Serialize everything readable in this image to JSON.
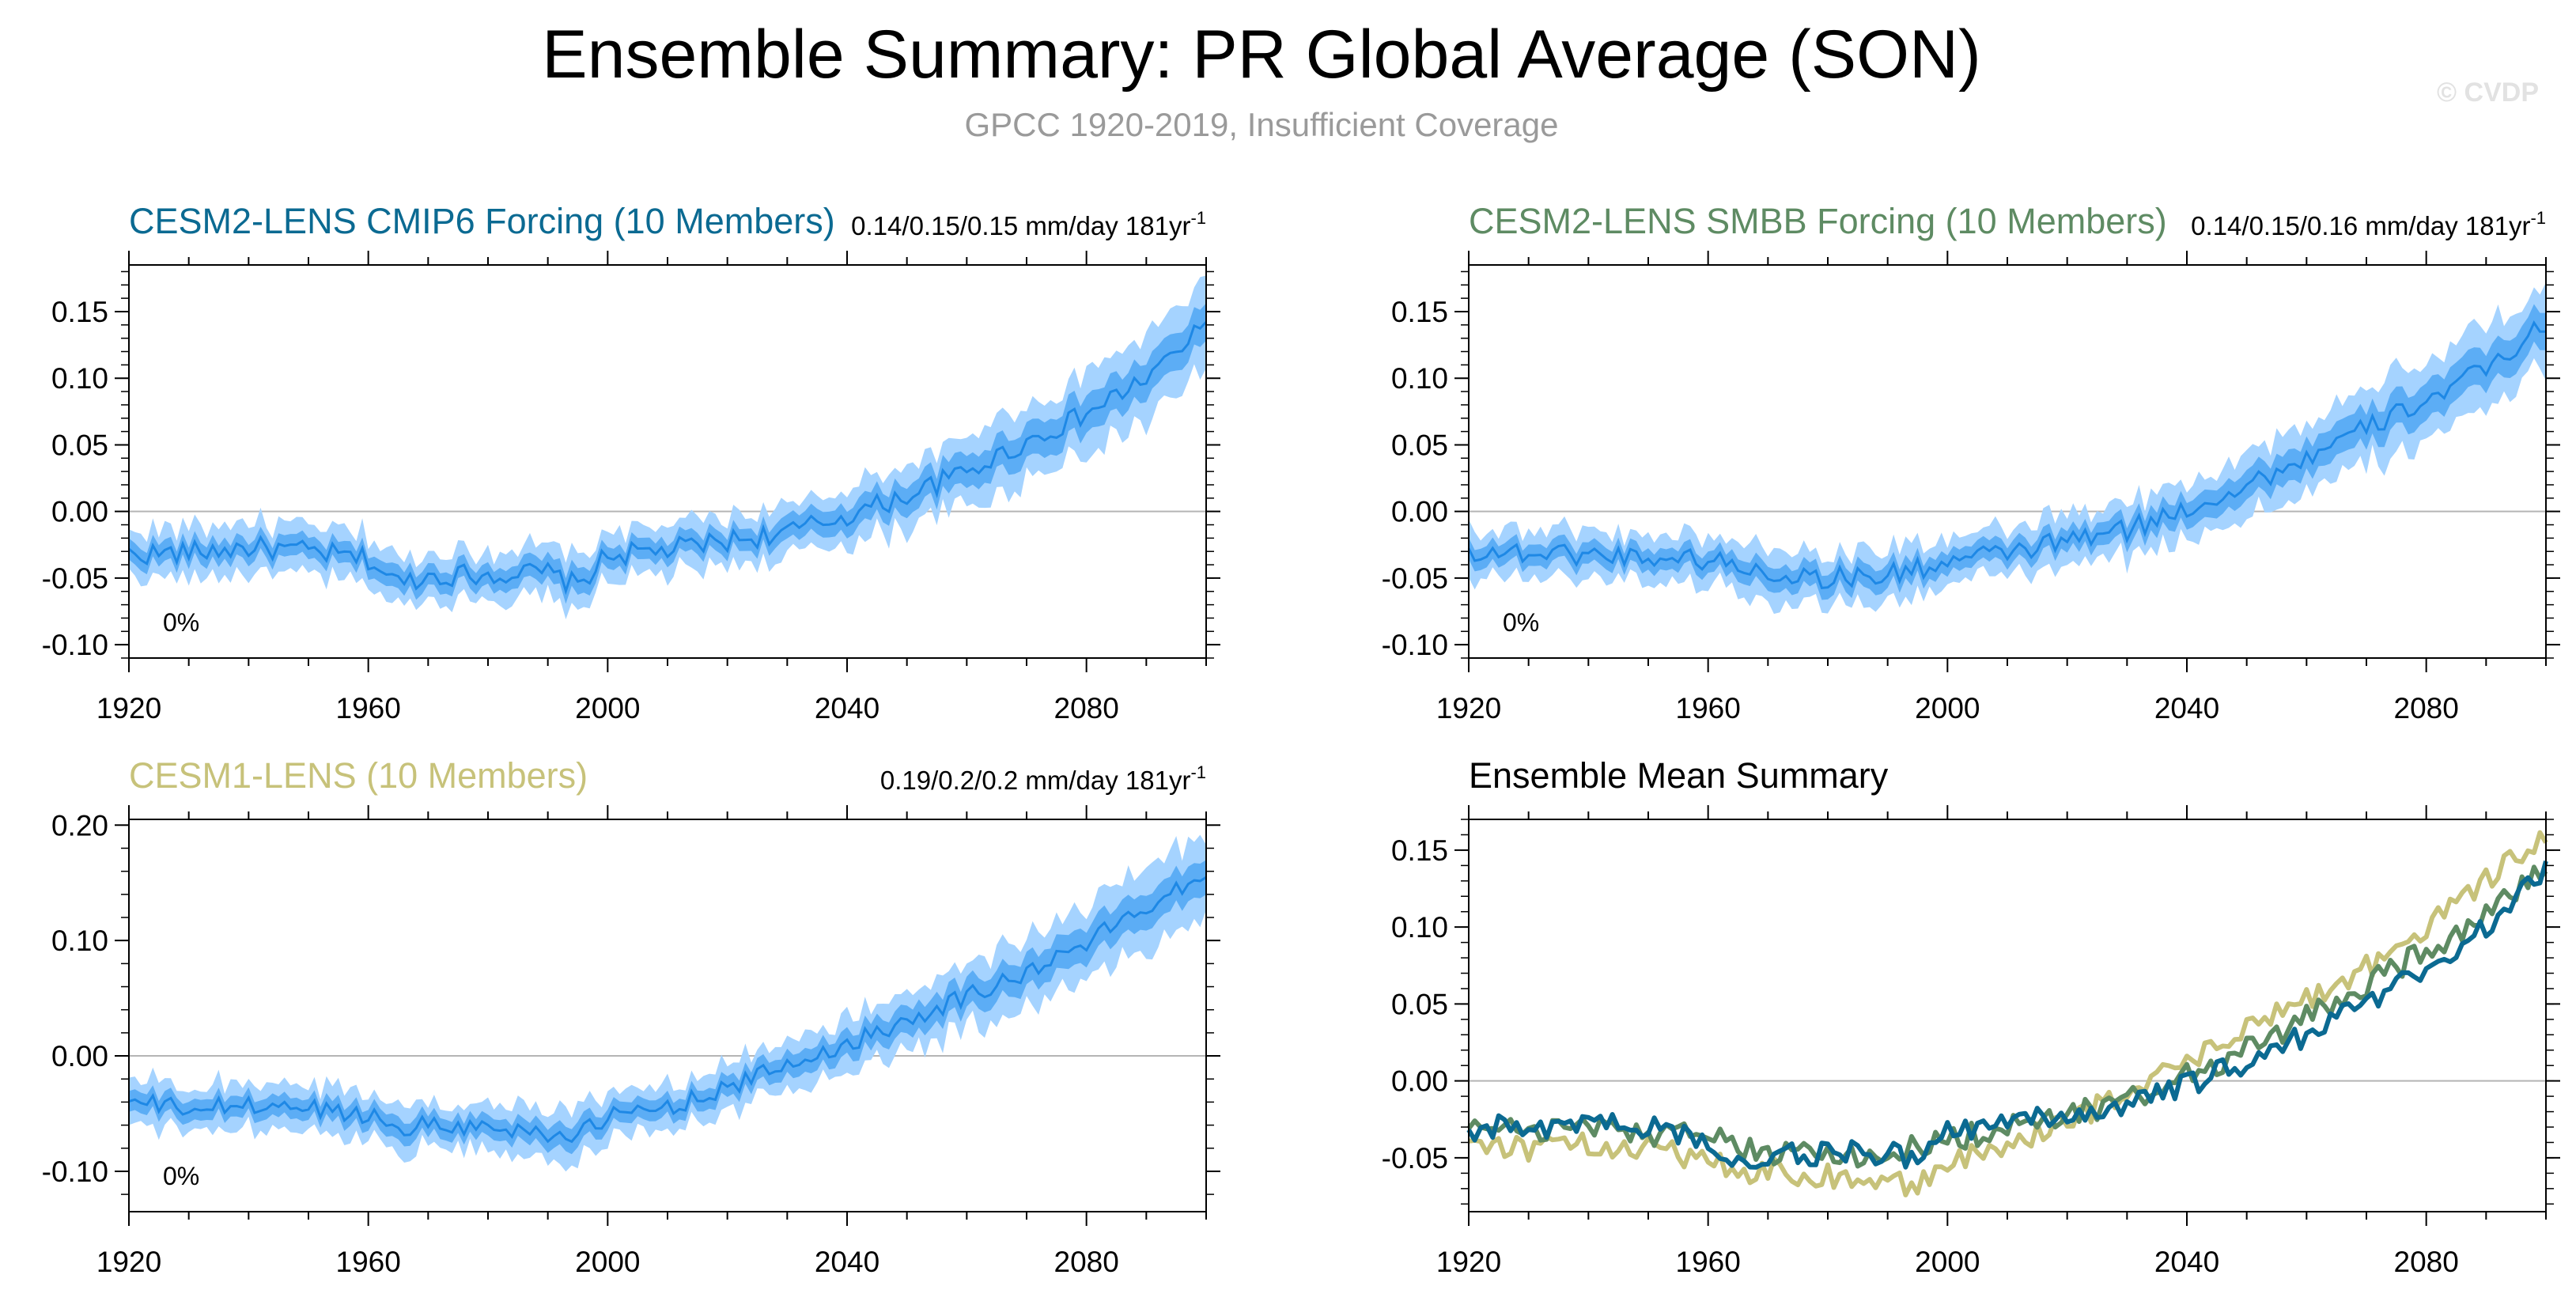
{
  "title": "Ensemble Summary: PR Global Average (SON)",
  "subtitle": "GPCC 1920-2019, Insufficient Coverage",
  "watermark": "© CVDP",
  "colors": {
    "band_outer": "#a5d3ff",
    "band_inner": "#5cadf5",
    "mean_line": "#1e88e5",
    "cesm2_cmip6": "#0b6a92",
    "cesm2_smbb": "#5e8b63",
    "cesm1": "#c7c27a",
    "zero_line": "#b5b5b5",
    "axis": "#000000"
  },
  "chart_data": [
    {
      "id": "cesm2-cmip6",
      "type": "area",
      "title": "CESM2-LENS CMIP6 Forcing (10 Members)",
      "title_color": "#0b6a92",
      "stat": "0.14/0.15/0.15 mm/day 181yr",
      "stat_sup": "-1",
      "pct": "0%",
      "xlim": [
        1920,
        2100
      ],
      "ylim": [
        -0.11,
        0.185
      ],
      "xticks": [
        1920,
        1960,
        2000,
        2040,
        2080
      ],
      "yticks": [
        "0.15",
        "0.10",
        "0.05",
        "0.00",
        "-0.05",
        "-0.10"
      ],
      "x": [
        1920,
        1930,
        1940,
        1950,
        1960,
        1965,
        1970,
        1980,
        1990,
        1995,
        2000,
        2010,
        2020,
        2030,
        2040,
        2050,
        2060,
        2070,
        2080,
        2090,
        2100
      ],
      "mean": [
        -0.032,
        -0.031,
        -0.027,
        -0.03,
        -0.036,
        -0.054,
        -0.048,
        -0.047,
        -0.046,
        -0.056,
        -0.033,
        -0.029,
        -0.022,
        -0.016,
        -0.003,
        0.012,
        0.03,
        0.052,
        0.073,
        0.1,
        0.139
      ],
      "spread_outer": [
        0.018,
        0.018,
        0.018,
        0.018,
        0.018,
        0.02,
        0.018,
        0.018,
        0.02,
        0.022,
        0.018,
        0.018,
        0.018,
        0.02,
        0.022,
        0.024,
        0.026,
        0.028,
        0.03,
        0.032,
        0.032
      ],
      "spread_inner": [
        0.008,
        0.008,
        0.008,
        0.008,
        0.008,
        0.009,
        0.008,
        0.008,
        0.009,
        0.01,
        0.008,
        0.008,
        0.008,
        0.009,
        0.01,
        0.011,
        0.012,
        0.013,
        0.014,
        0.014,
        0.014
      ]
    },
    {
      "id": "cesm2-smbb",
      "type": "area",
      "title": "CESM2-LENS SMBB Forcing (10 Members)",
      "title_color": "#5e8b63",
      "stat": "0.14/0.15/0.16 mm/day 181yr",
      "stat_sup": "-1",
      "pct": "0%",
      "xlim": [
        1920,
        2100
      ],
      "ylim": [
        -0.11,
        0.185
      ],
      "xticks": [
        1920,
        1960,
        2000,
        2040,
        2080
      ],
      "yticks": [
        "0.15",
        "0.10",
        "0.05",
        "0.00",
        "-0.05",
        "-0.10"
      ],
      "x": [
        1920,
        1930,
        1940,
        1950,
        1960,
        1970,
        1980,
        1990,
        2000,
        2010,
        2020,
        2030,
        2040,
        2050,
        2060,
        2070,
        2080,
        2090,
        2100
      ],
      "mean": [
        -0.03,
        -0.031,
        -0.032,
        -0.034,
        -0.036,
        -0.046,
        -0.05,
        -0.048,
        -0.038,
        -0.031,
        -0.022,
        -0.014,
        0.002,
        0.02,
        0.04,
        0.062,
        0.084,
        0.106,
        0.142
      ],
      "spread_outer": [
        0.018,
        0.018,
        0.018,
        0.018,
        0.018,
        0.02,
        0.02,
        0.02,
        0.018,
        0.018,
        0.018,
        0.02,
        0.022,
        0.024,
        0.026,
        0.028,
        0.03,
        0.03,
        0.03
      ],
      "spread_inner": [
        0.008,
        0.008,
        0.008,
        0.008,
        0.008,
        0.009,
        0.009,
        0.009,
        0.008,
        0.008,
        0.008,
        0.009,
        0.01,
        0.011,
        0.012,
        0.013,
        0.014,
        0.014,
        0.014
      ]
    },
    {
      "id": "cesm1",
      "type": "area",
      "title": "CESM1-LENS (10 Members)",
      "title_color": "#c7c27a",
      "stat": "0.19/0.2/0.2 mm/day 181yr",
      "stat_sup": "-1",
      "pct": "0%",
      "xlim": [
        1920,
        2100
      ],
      "ylim": [
        -0.135,
        0.205
      ],
      "xticks": [
        1920,
        1960,
        2000,
        2040,
        2080
      ],
      "yticks": [
        "0.20",
        "0.10",
        "0.00",
        "-0.10"
      ],
      "x": [
        1920,
        1930,
        1940,
        1950,
        1960,
        1965,
        1970,
        1980,
        1990,
        1995,
        2000,
        2010,
        2020,
        2030,
        2040,
        2050,
        2060,
        2070,
        2080,
        2090,
        2100
      ],
      "mean": [
        -0.04,
        -0.046,
        -0.043,
        -0.045,
        -0.051,
        -0.062,
        -0.059,
        -0.062,
        -0.066,
        -0.07,
        -0.053,
        -0.044,
        -0.028,
        -0.008,
        0.01,
        0.032,
        0.052,
        0.072,
        0.098,
        0.13,
        0.16
      ],
      "spread_outer": [
        0.02,
        0.02,
        0.02,
        0.02,
        0.02,
        0.022,
        0.02,
        0.02,
        0.022,
        0.024,
        0.02,
        0.02,
        0.02,
        0.022,
        0.024,
        0.026,
        0.028,
        0.03,
        0.032,
        0.034,
        0.034
      ],
      "spread_inner": [
        0.009,
        0.009,
        0.009,
        0.009,
        0.009,
        0.01,
        0.009,
        0.009,
        0.01,
        0.011,
        0.009,
        0.009,
        0.009,
        0.01,
        0.011,
        0.012,
        0.013,
        0.014,
        0.015,
        0.015,
        0.015
      ]
    },
    {
      "id": "ensemble-mean",
      "type": "line",
      "title": "Ensemble Mean Summary",
      "title_color": "#000000",
      "xlim": [
        1920,
        2100
      ],
      "ylim": [
        -0.085,
        0.17
      ],
      "xticks": [
        1920,
        1960,
        2000,
        2040,
        2080
      ],
      "yticks": [
        "0.15",
        "0.10",
        "0.05",
        "0.00",
        "-0.05"
      ],
      "series": [
        {
          "color": "#c7c27a",
          "x": [
            1920,
            1930,
            1940,
            1950,
            1960,
            1965,
            1970,
            1980,
            1990,
            1995,
            2000,
            2010,
            2020,
            2030,
            2040,
            2050,
            2060,
            2070,
            2080,
            2090,
            2100
          ],
          "values": [
            -0.038,
            -0.044,
            -0.042,
            -0.045,
            -0.05,
            -0.061,
            -0.058,
            -0.062,
            -0.066,
            -0.069,
            -0.052,
            -0.044,
            -0.027,
            -0.007,
            0.012,
            0.033,
            0.053,
            0.074,
            0.099,
            0.131,
            0.162
          ]
        },
        {
          "color": "#5e8b63",
          "x": [
            1920,
            1930,
            1940,
            1950,
            1960,
            1970,
            1980,
            1990,
            2000,
            2010,
            2020,
            2030,
            2040,
            2050,
            2060,
            2070,
            2080,
            2090,
            2100
          ],
          "values": [
            -0.03,
            -0.031,
            -0.032,
            -0.034,
            -0.037,
            -0.046,
            -0.05,
            -0.048,
            -0.038,
            -0.031,
            -0.022,
            -0.013,
            0.003,
            0.02,
            0.041,
            0.062,
            0.085,
            0.107,
            0.143
          ]
        },
        {
          "color": "#0b6a92",
          "x": [
            1920,
            1930,
            1940,
            1950,
            1960,
            1965,
            1970,
            1980,
            1990,
            1995,
            2000,
            2010,
            2020,
            2030,
            2040,
            2050,
            2060,
            2070,
            2080,
            2090,
            2100
          ],
          "values": [
            -0.031,
            -0.03,
            -0.027,
            -0.03,
            -0.036,
            -0.053,
            -0.048,
            -0.047,
            -0.046,
            -0.055,
            -0.033,
            -0.029,
            -0.022,
            -0.016,
            -0.003,
            0.012,
            0.03,
            0.052,
            0.073,
            0.099,
            0.139
          ]
        }
      ]
    }
  ]
}
